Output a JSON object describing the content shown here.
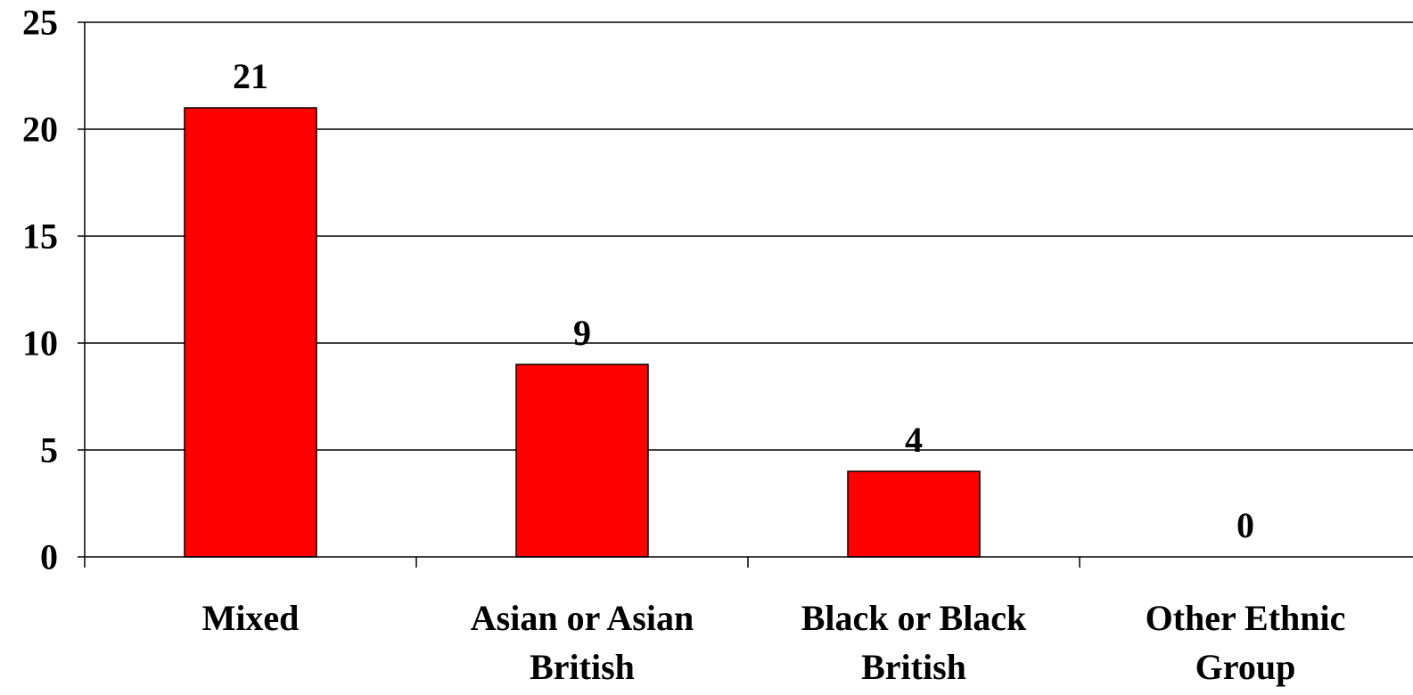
{
  "chart_data": {
    "type": "bar",
    "categories": [
      [
        "Mixed"
      ],
      [
        "Asian or Asian",
        "British"
      ],
      [
        "Black or Black",
        "British"
      ],
      [
        "Other Ethnic",
        "Group"
      ]
    ],
    "values": [
      21,
      9,
      4,
      0
    ],
    "data_labels": [
      "21",
      "9",
      "4",
      "0"
    ],
    "ylim": [
      0,
      25
    ],
    "yticks": [
      0,
      5,
      10,
      15,
      20,
      25
    ],
    "ytick_labels": [
      "0",
      "5",
      "10",
      "15",
      "20",
      "25"
    ],
    "title": "",
    "xlabel": "",
    "ylabel": "",
    "grid": true,
    "legend": "none",
    "bar_color": "#ff0000",
    "bar_edge_color": "#000000"
  }
}
